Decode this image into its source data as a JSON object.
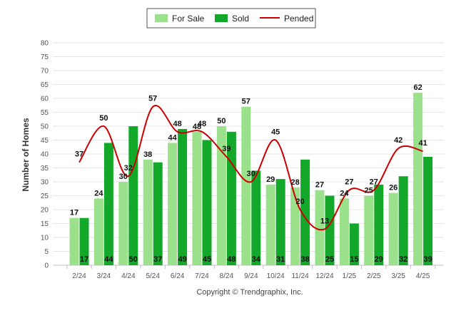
{
  "chart_data": {
    "type": "bar",
    "title": "",
    "xlabel": "",
    "ylabel": "Number of Homes",
    "ylim": [
      0,
      80
    ],
    "yticks": [
      0,
      5,
      10,
      15,
      20,
      25,
      30,
      35,
      40,
      45,
      50,
      55,
      60,
      65,
      70,
      75,
      80
    ],
    "grid": true,
    "legend_position": "top-center",
    "categories": [
      "2/24",
      "3/24",
      "4/24",
      "5/24",
      "6/24",
      "7/24",
      "8/24",
      "9/24",
      "10/24",
      "11/24",
      "12/24",
      "1/25",
      "2/25",
      "3/25",
      "4/25"
    ],
    "series": [
      {
        "name": "For Sale",
        "kind": "bar",
        "color": "#9be08a",
        "values": [
          17,
          24,
          30,
          38,
          44,
          48,
          50,
          57,
          29,
          28,
          27,
          24,
          25,
          26,
          62
        ]
      },
      {
        "name": "Sold",
        "kind": "bar",
        "color": "#14a82b",
        "values": [
          17,
          44,
          50,
          37,
          49,
          45,
          48,
          34,
          31,
          38,
          25,
          15,
          29,
          32,
          39
        ]
      },
      {
        "name": "Pended",
        "kind": "line",
        "color": "#cc0000",
        "values": [
          37,
          50,
          32,
          57,
          48,
          48,
          39,
          30,
          45,
          20,
          13,
          27,
          27,
          42,
          41
        ]
      }
    ],
    "footer": "Copyright © Trendgraphix, Inc."
  }
}
